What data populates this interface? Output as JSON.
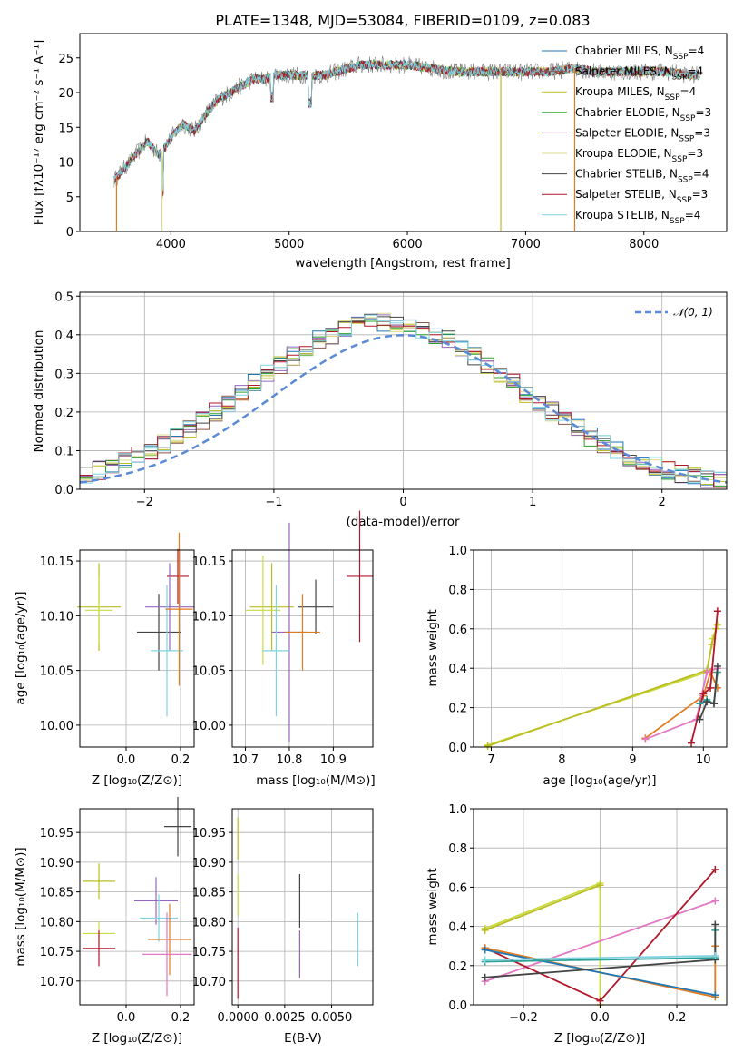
{
  "colors": {
    "cmiles": "#1f77b4",
    "smiles": "#8c564b",
    "kmiles": "#bcbd22",
    "celodie": "#2ca02c",
    "selodie": "#9467bd",
    "kelodie": "#dbdb8d",
    "cstelib": "#444444",
    "sstelib": "#b2182b",
    "kstelib": "#7fd3e0",
    "normal": "#5b8bd6",
    "orange": "#e07b20",
    "pink": "#e377c2",
    "lime": "#c7dc3f",
    "teal": "#2aa198",
    "gray": "#7f7f7f"
  },
  "panels": {
    "spectrum": {
      "title": "PLATE=1348, MJD=53084, FIBERID=0109, z=0.083",
      "xlabel": "wavelength [Angstrom, rest frame]",
      "ylabel": "Flux [fλ10⁻¹⁷ erg cm⁻² s⁻¹ A⁻¹]",
      "legend": [
        "Chabrier MILES, N_SSP=4",
        "Salpeter MILES, N_SSP=4",
        "Kroupa MILES, N_SSP=4",
        "Chabrier ELODIE, N_SSP=3",
        "Salpeter ELODIE, N_SSP=3",
        "Kroupa ELODIE, N_SSP=3",
        "Chabrier STELIB, N_SSP=4",
        "Salpeter STELIB, N_SSP=3",
        "Kroupa STELIB, N_SSP=4"
      ]
    },
    "hist": {
      "xlabel": "(data-model)/error",
      "ylabel": "Normed distribution",
      "legend": [
        "𝒩(0, 1)"
      ]
    },
    "age_z": {
      "xlabel": "Z [log₁₀(Z/Z⊙)]",
      "ylabel": "age  [log₁₀(age/yr)]"
    },
    "age_mass": {
      "xlabel": "mass [log₁₀(M/M⊙)]"
    },
    "weight_age": {
      "xlabel": "age  [log₁₀(age/yr)]",
      "ylabel": "mass weight"
    },
    "mass_z": {
      "xlabel": "Z [log₁₀(Z/Z⊙)]",
      "ylabel": "mass [log₁₀(M/M⊙)]"
    },
    "mass_ebv": {
      "xlabel": "E(B-V)"
    },
    "weight_z": {
      "xlabel": "Z [log₁₀(Z/Z⊙)]",
      "ylabel": "mass weight"
    }
  },
  "chart_data": [
    {
      "type": "line",
      "title": "PLATE=1348, MJD=53084, FIBERID=0109, z=0.083",
      "xlabel": "wavelength [Angstrom, rest frame]",
      "ylabel": "Flux [fλ10⁻¹⁷ erg cm⁻² s⁻¹ A⁻¹]",
      "xlim": [
        3230,
        8700
      ],
      "ylim": [
        0,
        28.5
      ],
      "xticks": [
        4000,
        5000,
        6000,
        7000,
        8000
      ],
      "yticks": [
        0,
        5,
        10,
        15,
        20,
        25
      ],
      "grid": false,
      "legend_position": "top-right",
      "continuum": {
        "x": [
          3500,
          3600,
          3700,
          3800,
          3900,
          4000,
          4100,
          4200,
          4300,
          4400,
          4500,
          4600,
          4700,
          4800,
          4900,
          5000,
          5100,
          5200,
          5300,
          5400,
          5500,
          5600,
          5700,
          5800,
          5900,
          6000,
          6200,
          6400,
          6600,
          6800,
          7000,
          7200,
          7400,
          7600,
          7800,
          8000,
          8200,
          8400
        ],
        "y": [
          7,
          9,
          11,
          13,
          11,
          13.5,
          15.5,
          14.5,
          17,
          19,
          20,
          21,
          22,
          22,
          22.5,
          22.5,
          22.5,
          22.5,
          22.5,
          23,
          23.5,
          24,
          24,
          24,
          24,
          24,
          23.5,
          23,
          23,
          23,
          23,
          23,
          23.5,
          23,
          23,
          23,
          23,
          22.5
        ]
      },
      "series": [
        {
          "name": "Chabrier MILES, N_SSP=4",
          "color": "#1f77b4"
        },
        {
          "name": "Salpeter MILES, N_SSP=4",
          "color": "#8c564b"
        },
        {
          "name": "Kroupa MILES, N_SSP=4",
          "color": "#bcbd22"
        },
        {
          "name": "Chabrier ELODIE, N_SSP=3",
          "color": "#2ca02c"
        },
        {
          "name": "Salpeter ELODIE, N_SSP=3",
          "color": "#9467bd"
        },
        {
          "name": "Kroupa ELODIE, N_SSP=3",
          "color": "#dbdb8d"
        },
        {
          "name": "Chabrier STELIB, N_SSP=4",
          "color": "#444444"
        },
        {
          "name": "Salpeter STELIB, N_SSP=3",
          "color": "#b2182b"
        },
        {
          "name": "Kroupa STELIB, N_SSP=4",
          "color": "#7fd3e0"
        }
      ]
    },
    {
      "type": "histogram",
      "xlabel": "(data-model)/error",
      "ylabel": "Normed distribution",
      "xlim": [
        -2.5,
        2.5
      ],
      "ylim": [
        0,
        0.51
      ],
      "xticks": [
        -2,
        -1,
        0,
        1,
        2
      ],
      "yticks": [
        0.0,
        0.1,
        0.2,
        0.3,
        0.4,
        0.5
      ],
      "grid": true,
      "legend_position": "top-right",
      "bin_width": 0.1,
      "reference_curve": {
        "name": "𝒩(0, 1)",
        "mean": 0,
        "sigma": 1
      }
    },
    {
      "type": "scatter",
      "xlabel": "Z [log₁₀(Z/Z⊙)]",
      "ylabel": "age  [log₁₀(age/yr)]",
      "xlim": [
        -0.17,
        0.25
      ],
      "ylim": [
        9.98,
        10.16
      ],
      "xticks": [
        0.0,
        0.2
      ],
      "yticks": [
        10.0,
        10.05,
        10.1,
        10.15
      ],
      "grid": true,
      "errorbars": [
        {
          "x": -0.1,
          "xerr": 0.08,
          "y": 10.108,
          "yerr": 0.04
        },
        {
          "x": -0.1,
          "xerr": 0.05,
          "y": 10.105,
          "yerr": 0.03
        },
        {
          "x": 0.19,
          "xerr": 0.04,
          "y": 10.136,
          "yerr": 0.025
        },
        {
          "x": 0.12,
          "xerr": 0.08,
          "y": 10.085,
          "yerr": 0.035
        },
        {
          "x": 0.16,
          "xerr": 0.09,
          "y": 10.108,
          "yerr": 0.04
        },
        {
          "x": 0.15,
          "xerr": 0.06,
          "y": 10.068,
          "yerr": 0.06
        },
        {
          "x": 0.195,
          "xerr": 0.05,
          "y": 10.106,
          "yerr": 0.07
        }
      ]
    },
    {
      "type": "scatter",
      "xlabel": "mass [log₁₀(M/M⊙)]",
      "xlim": [
        10.67,
        10.99
      ],
      "ylim": [
        9.98,
        10.16
      ],
      "xticks": [
        10.7,
        10.8,
        10.9
      ],
      "yticks": [
        10.0,
        10.05,
        10.1,
        10.15
      ],
      "grid": true,
      "errorbars": [
        {
          "x": 10.76,
          "xerr": 0.05,
          "y": 10.108,
          "yerr": 0.04
        },
        {
          "x": 10.74,
          "xerr": 0.04,
          "y": 10.105,
          "yerr": 0.05
        },
        {
          "x": 10.96,
          "xerr": 0.03,
          "y": 10.136,
          "yerr": 0.06
        },
        {
          "x": 10.86,
          "xerr": 0.04,
          "y": 10.108,
          "yerr": 0.025
        },
        {
          "x": 10.8,
          "xerr": 0.04,
          "y": 10.085,
          "yerr": 0.1
        },
        {
          "x": 10.77,
          "xerr": 0.03,
          "y": 10.068,
          "yerr": 0.06
        },
        {
          "x": 10.83,
          "xerr": 0.04,
          "y": 10.085,
          "yerr": 0.035
        }
      ]
    },
    {
      "type": "line",
      "xlabel": "age  [log₁₀(age/yr)]",
      "ylabel": "mass weight",
      "xlim": [
        6.75,
        10.33
      ],
      "ylim": [
        0,
        1.0
      ],
      "xticks": [
        7,
        8,
        9,
        10
      ],
      "yticks": [
        0.0,
        0.2,
        0.4,
        0.6,
        0.8,
        1.0
      ],
      "grid": true,
      "series": [
        {
          "color": "#c7dc3f",
          "x": [
            6.95,
            10.05,
            10.13,
            10.2
          ],
          "y": [
            0.01,
            0.38,
            0.55,
            0.62
          ]
        },
        {
          "color": "#bcbd22",
          "x": [
            6.95,
            10.05,
            10.12,
            10.18
          ],
          "y": [
            0.005,
            0.39,
            0.52,
            0.6
          ]
        },
        {
          "color": "#e07b20",
          "x": [
            9.18,
            10.0,
            10.1,
            10.2
          ],
          "y": [
            0.045,
            0.26,
            0.38,
            0.3
          ]
        },
        {
          "color": "#e377c2",
          "x": [
            9.18,
            9.9,
            10.05,
            10.2
          ],
          "y": [
            0.04,
            0.14,
            0.38,
            0.4
          ]
        },
        {
          "color": "#b2182b",
          "x": [
            9.83,
            10.0,
            10.1,
            10.2
          ],
          "y": [
            0.02,
            0.27,
            0.3,
            0.69
          ]
        },
        {
          "color": "#2aa198",
          "x": [
            9.95,
            10.05,
            10.15,
            10.2
          ],
          "y": [
            0.22,
            0.24,
            0.22,
            0.38
          ]
        },
        {
          "color": "#444444",
          "x": [
            9.95,
            10.05,
            10.15,
            10.2
          ],
          "y": [
            0.14,
            0.23,
            0.22,
            0.41
          ]
        }
      ]
    },
    {
      "type": "scatter",
      "xlabel": "Z [log₁₀(Z/Z⊙)]",
      "ylabel": "mass [log₁₀(M/M⊙)]",
      "xlim": [
        -0.17,
        0.25
      ],
      "ylim": [
        10.66,
        10.99
      ],
      "xticks": [
        0.0,
        0.2
      ],
      "yticks": [
        10.7,
        10.75,
        10.8,
        10.85,
        10.9,
        10.95
      ],
      "grid": true,
      "errorbars": [
        {
          "x": -0.1,
          "xerr": 0.06,
          "y": 10.868,
          "yerr": 0.03
        },
        {
          "x": -0.1,
          "xerr": 0.06,
          "y": 10.78,
          "yerr": 0.02
        },
        {
          "x": -0.1,
          "xerr": 0.06,
          "y": 10.755,
          "yerr": 0.03
        },
        {
          "x": 0.19,
          "xerr": 0.05,
          "y": 10.96,
          "yerr": 0.05
        },
        {
          "x": 0.11,
          "xerr": 0.08,
          "y": 10.835,
          "yerr": 0.04
        },
        {
          "x": 0.12,
          "xerr": 0.07,
          "y": 10.806,
          "yerr": 0.04
        },
        {
          "x": 0.16,
          "xerr": 0.08,
          "y": 10.77,
          "yerr": 0.06
        },
        {
          "x": 0.15,
          "xerr": 0.09,
          "y": 10.745,
          "yerr": 0.07
        }
      ]
    },
    {
      "type": "scatter",
      "xlabel": "E(B-V)",
      "xlim": [
        -0.0003,
        0.0072
      ],
      "ylim": [
        10.66,
        10.99
      ],
      "xticks": [
        0.0,
        0.0025,
        0.005
      ],
      "yticks": [
        10.7,
        10.75,
        10.8,
        10.85,
        10.9,
        10.95
      ],
      "grid": true,
      "errorbars": [
        {
          "x": 0.0,
          "y": 10.94,
          "yerr": 0.035
        },
        {
          "x": 0.0,
          "y": 10.845,
          "yerr": 0.035
        },
        {
          "x": 0.0,
          "y": 10.73,
          "yerr": 0.06
        },
        {
          "x": 0.0033,
          "y": 10.835,
          "yerr": 0.045
        },
        {
          "x": 0.0033,
          "y": 10.745,
          "yerr": 0.04
        },
        {
          "x": 0.0064,
          "y": 10.77,
          "yerr": 0.045
        }
      ]
    },
    {
      "type": "line",
      "xlabel": "Z [log₁₀(Z/Z⊙)]",
      "ylabel": "mass weight",
      "xlim": [
        -0.33,
        0.33
      ],
      "ylim": [
        0,
        1.0
      ],
      "xticks": [
        -0.2,
        0.0,
        0.2
      ],
      "yticks": [
        0.0,
        0.2,
        0.4,
        0.6,
        0.8,
        1.0
      ],
      "grid": true,
      "series": [
        {
          "color": "#c7dc3f",
          "x": [
            -0.3,
            0.0,
            0.0
          ],
          "y": [
            0.39,
            0.62,
            0.0
          ]
        },
        {
          "color": "#bcbd22",
          "x": [
            -0.3,
            0.0
          ],
          "y": [
            0.38,
            0.61
          ]
        },
        {
          "color": "#e377c2",
          "x": [
            -0.3,
            0.3
          ],
          "y": [
            0.12,
            0.53
          ]
        },
        {
          "color": "#b2182b",
          "x": [
            -0.3,
            0.0,
            0.3
          ],
          "y": [
            0.29,
            0.02,
            0.69
          ]
        },
        {
          "color": "#e07b20",
          "x": [
            -0.3,
            0.3,
            0.3
          ],
          "y": [
            0.29,
            0.04,
            0.3
          ]
        },
        {
          "color": "#1f77b4",
          "x": [
            -0.3,
            0.3
          ],
          "y": [
            0.28,
            0.05
          ]
        },
        {
          "color": "#2aa198",
          "x": [
            -0.3,
            0.3,
            0.3
          ],
          "y": [
            0.22,
            0.24,
            0.38
          ]
        },
        {
          "color": "#444444",
          "x": [
            -0.3,
            0.3,
            0.3
          ],
          "y": [
            0.14,
            0.23,
            0.41
          ]
        },
        {
          "color": "#7fd3e0",
          "x": [
            -0.3,
            0.3
          ],
          "y": [
            0.23,
            0.25
          ]
        }
      ]
    }
  ]
}
